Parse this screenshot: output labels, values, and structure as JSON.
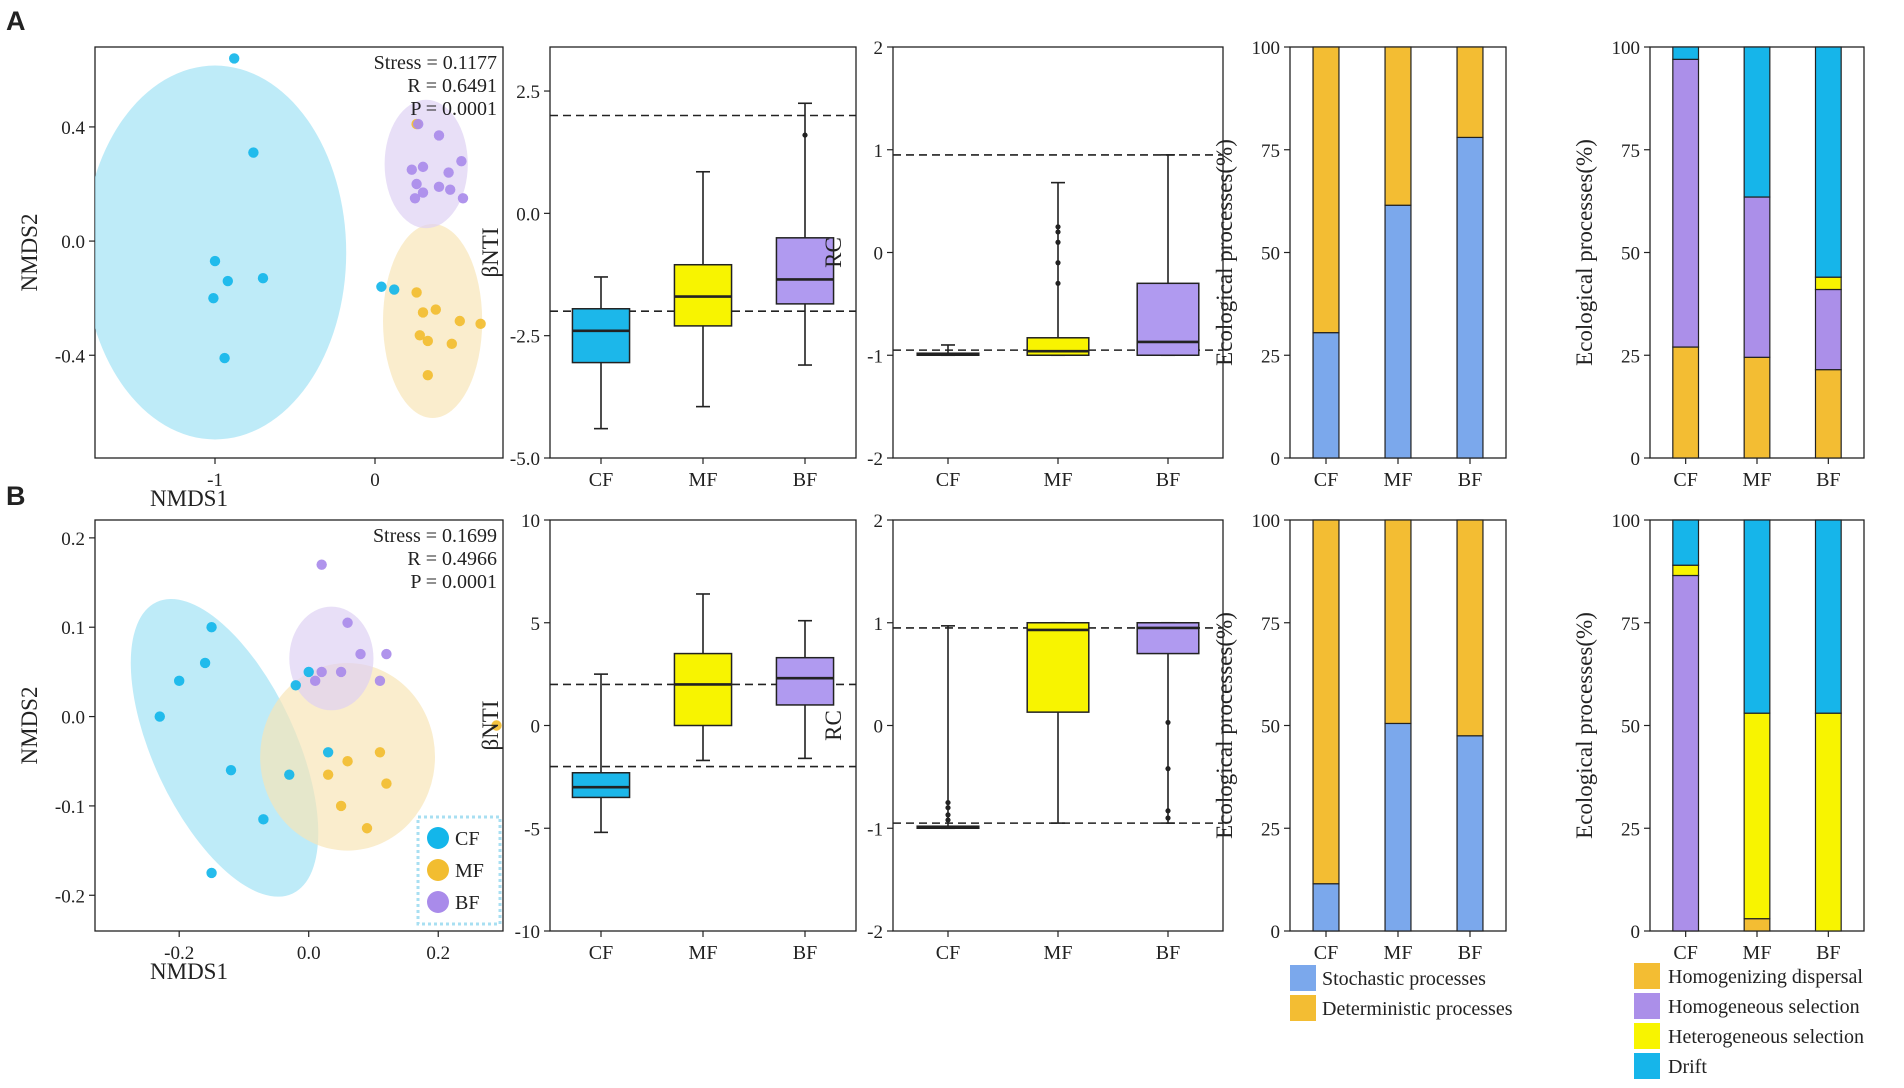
{
  "panel_labels": [
    "A",
    "B"
  ],
  "colors": {
    "cf": "#13b6ea",
    "mf": "#f2bd30",
    "bf": "#a98bea",
    "cf_box": "#1cb7ea",
    "mf_box": "#f8f400",
    "bf_box": "#b09af0",
    "cf_ellipse": "#9fe1f5",
    "mf_ellipse": "#f8e4b6",
    "bf_ellipse": "#ddd0f3",
    "stochastic": "#7ba8ec",
    "deterministic": "#f3bd33",
    "homogenizing": "#f3bd33",
    "homogeneous": "#ab8fe9",
    "heterogeneous": "#f8f400",
    "drift": "#16b5ea"
  },
  "legends": {
    "groups": [
      {
        "key": "cf",
        "label": "CF"
      },
      {
        "key": "mf",
        "label": "MF"
      },
      {
        "key": "bf",
        "label": "BF"
      }
    ],
    "processes": [
      {
        "key": "stochastic",
        "label": "Stochastic processes"
      },
      {
        "key": "deterministic",
        "label": "Deterministic processes"
      }
    ],
    "components": [
      {
        "key": "homogenizing",
        "label": "Homogenizing dispersal"
      },
      {
        "key": "homogeneous",
        "label": "Homogeneous selection"
      },
      {
        "key": "heterogeneous",
        "label": "Heterogeneous selection"
      },
      {
        "key": "drift",
        "label": "Drift"
      }
    ]
  },
  "chart_data": [
    {
      "id": "A_nmds",
      "type": "scatter",
      "panel": "A",
      "xlabel": "NMDS1",
      "ylabel": "NMDS2",
      "xlim": [
        -1.75,
        0.8
      ],
      "ylim": [
        -0.76,
        0.68
      ],
      "xticks": [
        -1,
        0
      ],
      "xtick_labels": [
        "-1",
        "0"
      ],
      "yticks": [
        -0.4,
        0.0,
        0.4
      ],
      "ytick_labels": [
        "-0.4",
        "0.0",
        "0.4"
      ],
      "stats": [
        "Stress = 0.1177",
        "R = 0.6491",
        "P = 0.0001"
      ],
      "ellipses": [
        {
          "group": "cf",
          "cx": -1.0,
          "cy": -0.04,
          "rx": 0.82,
          "ry": 0.655,
          "angle": 0
        },
        {
          "group": "mf",
          "cx": 0.36,
          "cy": -0.28,
          "rx": 0.31,
          "ry": 0.34,
          "angle": 0
        },
        {
          "group": "bf",
          "cx": 0.32,
          "cy": 0.27,
          "rx": 0.26,
          "ry": 0.225,
          "angle": 0
        }
      ],
      "series": [
        {
          "group": "cf",
          "points": [
            [
              -0.88,
              0.64
            ],
            [
              -0.76,
              0.31
            ],
            [
              -1.0,
              -0.07
            ],
            [
              -0.92,
              -0.14
            ],
            [
              -0.7,
              -0.13
            ],
            [
              -1.01,
              -0.2
            ],
            [
              -0.94,
              -0.41
            ],
            [
              0.04,
              -0.16
            ],
            [
              0.12,
              -0.17
            ]
          ]
        },
        {
          "group": "mf",
          "points": [
            [
              0.26,
              -0.18
            ],
            [
              0.3,
              -0.25
            ],
            [
              0.38,
              -0.24
            ],
            [
              0.53,
              -0.28
            ],
            [
              0.66,
              -0.29
            ],
            [
              0.28,
              -0.33
            ],
            [
              0.33,
              -0.35
            ],
            [
              0.48,
              -0.36
            ],
            [
              0.33,
              -0.47
            ],
            [
              0.26,
              0.41
            ]
          ]
        },
        {
          "group": "bf",
          "points": [
            [
              0.27,
              0.41
            ],
            [
              0.4,
              0.37
            ],
            [
              0.54,
              0.28
            ],
            [
              0.3,
              0.26
            ],
            [
              0.46,
              0.24
            ],
            [
              0.23,
              0.25
            ],
            [
              0.26,
              0.2
            ],
            [
              0.3,
              0.17
            ],
            [
              0.4,
              0.19
            ],
            [
              0.47,
              0.18
            ],
            [
              0.55,
              0.15
            ],
            [
              0.25,
              0.15
            ]
          ]
        }
      ]
    },
    {
      "id": "A_bnti",
      "type": "box",
      "panel": "A",
      "ylabel": "βNTI",
      "categories": [
        "CF",
        "MF",
        "BF"
      ],
      "ylim": [
        -5,
        3.4
      ],
      "yticks": [
        -5,
        -2.5,
        0,
        2.5
      ],
      "ytick_labels": [
        "-5.0",
        "-2.5",
        "0.0",
        "2.5"
      ],
      "hlines": [
        2,
        -2
      ],
      "boxes": [
        {
          "group": "cf_box",
          "min": -4.4,
          "q1": -3.05,
          "median": -2.4,
          "q3": -1.95,
          "max": -1.3,
          "outliers": []
        },
        {
          "group": "mf_box",
          "min": -3.95,
          "q1": -2.3,
          "median": -1.7,
          "q3": -1.05,
          "max": 0.85,
          "outliers": []
        },
        {
          "group": "bf_box",
          "min": -3.1,
          "q1": -1.85,
          "median": -1.35,
          "q3": -0.5,
          "max": 2.25,
          "outliers": [
            1.6
          ]
        }
      ]
    },
    {
      "id": "A_rc",
      "type": "box",
      "panel": "A",
      "ylabel": "RC",
      "categories": [
        "CF",
        "MF",
        "BF"
      ],
      "ylim": [
        -2,
        2
      ],
      "yticks": [
        -2,
        -1,
        0,
        1,
        2
      ],
      "ytick_labels": [
        "-2",
        "-1",
        "0",
        "1",
        "2"
      ],
      "hlines": [
        0.95,
        -0.95
      ],
      "boxes": [
        {
          "group": "cf_box",
          "min": -1.0,
          "q1": -1.0,
          "median": -0.99,
          "q3": -0.98,
          "max": -0.9,
          "outliers": []
        },
        {
          "group": "mf_box",
          "min": -1.0,
          "q1": -1.0,
          "median": -0.96,
          "q3": -0.83,
          "max": 0.68,
          "outliers": [
            0.25,
            0.2,
            0.1,
            -0.1,
            -0.3
          ]
        },
        {
          "group": "bf_box",
          "min": -1.0,
          "q1": -1.0,
          "median": -0.87,
          "q3": -0.3,
          "max": 0.95,
          "outliers": []
        }
      ]
    },
    {
      "id": "A_processes",
      "type": "bar",
      "stacked": true,
      "panel": "A",
      "ylabel": "Ecological processes(%)",
      "categories": [
        "CF",
        "MF",
        "BF"
      ],
      "ylim": [
        0,
        100
      ],
      "yticks": [
        0,
        25,
        50,
        75,
        100
      ],
      "series": [
        {
          "key": "stochastic",
          "values": [
            30.5,
            61.5,
            78
          ]
        },
        {
          "key": "deterministic",
          "values": [
            69.5,
            38.5,
            22
          ]
        }
      ]
    },
    {
      "id": "A_components",
      "type": "bar",
      "stacked": true,
      "panel": "A",
      "ylabel": "Ecological processes(%)",
      "categories": [
        "CF",
        "MF",
        "BF"
      ],
      "ylim": [
        0,
        100
      ],
      "yticks": [
        0,
        25,
        50,
        75,
        100
      ],
      "series": [
        {
          "key": "homogenizing",
          "values": [
            27,
            24.5,
            21.5
          ]
        },
        {
          "key": "homogeneous",
          "values": [
            70,
            39,
            19.5
          ]
        },
        {
          "key": "heterogeneous",
          "values": [
            0,
            0,
            3
          ]
        },
        {
          "key": "drift",
          "values": [
            3,
            36.5,
            56
          ]
        }
      ]
    },
    {
      "id": "B_nmds",
      "type": "scatter",
      "panel": "B",
      "xlabel": "NMDS1",
      "ylabel": "NMDS2",
      "xlim": [
        -0.33,
        0.3
      ],
      "ylim": [
        -0.24,
        0.22
      ],
      "xticks": [
        -0.2,
        0,
        0.2
      ],
      "xtick_labels": [
        "-0.2",
        "0.0",
        "0.2"
      ],
      "yticks": [
        -0.2,
        -0.1,
        0,
        0.1,
        0.2
      ],
      "ytick_labels": [
        "-0.2",
        "-0.1",
        "0.0",
        "0.1",
        "0.2"
      ],
      "stats": [
        "Stress = 0.1699",
        "R = 0.4966",
        "P = 0.0001"
      ],
      "ellipses": [
        {
          "group": "cf",
          "cx": -0.13,
          "cy": -0.035,
          "rx": 0.11,
          "ry": 0.18,
          "angle": -25
        },
        {
          "group": "mf",
          "cx": 0.06,
          "cy": -0.045,
          "rx": 0.135,
          "ry": 0.105,
          "angle": 0
        },
        {
          "group": "bf",
          "cx": 0.035,
          "cy": 0.065,
          "rx": 0.065,
          "ry": 0.058,
          "angle": 0
        }
      ],
      "series": [
        {
          "group": "cf",
          "points": [
            [
              -0.15,
              0.1
            ],
            [
              -0.2,
              0.04
            ],
            [
              -0.16,
              0.06
            ],
            [
              -0.23,
              0.0
            ],
            [
              -0.12,
              -0.06
            ],
            [
              -0.07,
              -0.115
            ],
            [
              -0.15,
              -0.175
            ],
            [
              0.0,
              0.05
            ],
            [
              -0.02,
              0.035
            ],
            [
              -0.03,
              -0.065
            ],
            [
              0.03,
              -0.04
            ]
          ]
        },
        {
          "group": "mf",
          "points": [
            [
              0.29,
              -0.01
            ],
            [
              0.11,
              -0.04
            ],
            [
              0.06,
              -0.05
            ],
            [
              0.12,
              -0.075
            ],
            [
              0.05,
              -0.1
            ],
            [
              0.09,
              -0.125
            ],
            [
              0.03,
              -0.065
            ]
          ]
        },
        {
          "group": "bf",
          "points": [
            [
              0.02,
              0.17
            ],
            [
              0.06,
              0.105
            ],
            [
              0.12,
              0.07
            ],
            [
              0.08,
              0.07
            ],
            [
              0.05,
              0.05
            ],
            [
              0.11,
              0.04
            ],
            [
              0.02,
              0.05
            ],
            [
              0.01,
              0.04
            ]
          ]
        }
      ]
    },
    {
      "id": "B_bnti",
      "type": "box",
      "panel": "B",
      "ylabel": "βNTI",
      "categories": [
        "CF",
        "MF",
        "BF"
      ],
      "ylim": [
        -10,
        10
      ],
      "yticks": [
        -10,
        -5,
        0,
        5,
        10
      ],
      "ytick_labels": [
        "-10",
        "-5",
        "0",
        "5",
        "10"
      ],
      "hlines": [
        2,
        -2
      ],
      "boxes": [
        {
          "group": "cf_box",
          "min": -5.2,
          "q1": -3.5,
          "median": -3.0,
          "q3": -2.3,
          "max": 2.5,
          "outliers": []
        },
        {
          "group": "mf_box",
          "min": -1.7,
          "q1": 0.0,
          "median": 2.0,
          "q3": 3.5,
          "max": 6.4,
          "outliers": []
        },
        {
          "group": "bf_box",
          "min": -1.6,
          "q1": 1.0,
          "median": 2.3,
          "q3": 3.3,
          "max": 5.1,
          "outliers": []
        }
      ]
    },
    {
      "id": "B_rc",
      "type": "box",
      "panel": "B",
      "ylabel": "RC",
      "categories": [
        "CF",
        "MF",
        "BF"
      ],
      "ylim": [
        -2,
        2
      ],
      "yticks": [
        -2,
        -1,
        0,
        1,
        2
      ],
      "ytick_labels": [
        "-2",
        "-1",
        "0",
        "1",
        "2"
      ],
      "hlines": [
        0.95,
        -0.95
      ],
      "boxes": [
        {
          "group": "cf_box",
          "min": -1.0,
          "q1": -1.0,
          "median": -0.99,
          "q3": -0.98,
          "max": 0.97,
          "outliers": [
            -0.75,
            -0.8,
            -0.87,
            -0.92
          ]
        },
        {
          "group": "mf_box",
          "min": -0.95,
          "q1": 0.13,
          "median": 0.93,
          "q3": 1.0,
          "max": 1.0,
          "outliers": []
        },
        {
          "group": "bf_box",
          "min": -0.95,
          "q1": 0.7,
          "median": 0.95,
          "q3": 1.0,
          "max": 1.0,
          "outliers": [
            0.03,
            -0.42,
            -0.83,
            -0.9
          ]
        }
      ]
    },
    {
      "id": "B_processes",
      "type": "bar",
      "stacked": true,
      "panel": "B",
      "ylabel": "Ecological processes(%)",
      "categories": [
        "CF",
        "MF",
        "BF"
      ],
      "ylim": [
        0,
        100
      ],
      "yticks": [
        0,
        25,
        50,
        75,
        100
      ],
      "series": [
        {
          "key": "stochastic",
          "values": [
            11.5,
            50.5,
            47.5
          ]
        },
        {
          "key": "deterministic",
          "values": [
            88.5,
            49.5,
            52.5
          ]
        }
      ]
    },
    {
      "id": "B_components",
      "type": "bar",
      "stacked": true,
      "panel": "B",
      "ylabel": "Ecological processes(%)",
      "categories": [
        "CF",
        "MF",
        "BF"
      ],
      "ylim": [
        0,
        100
      ],
      "yticks": [
        0,
        25,
        50,
        75,
        100
      ],
      "series": [
        {
          "key": "homogenizing",
          "values": [
            0,
            3,
            0
          ]
        },
        {
          "key": "homogeneous",
          "values": [
            86.5,
            0,
            0
          ]
        },
        {
          "key": "heterogeneous",
          "values": [
            2.5,
            50,
            53
          ]
        },
        {
          "key": "drift",
          "values": [
            11,
            47,
            47
          ]
        }
      ]
    }
  ]
}
